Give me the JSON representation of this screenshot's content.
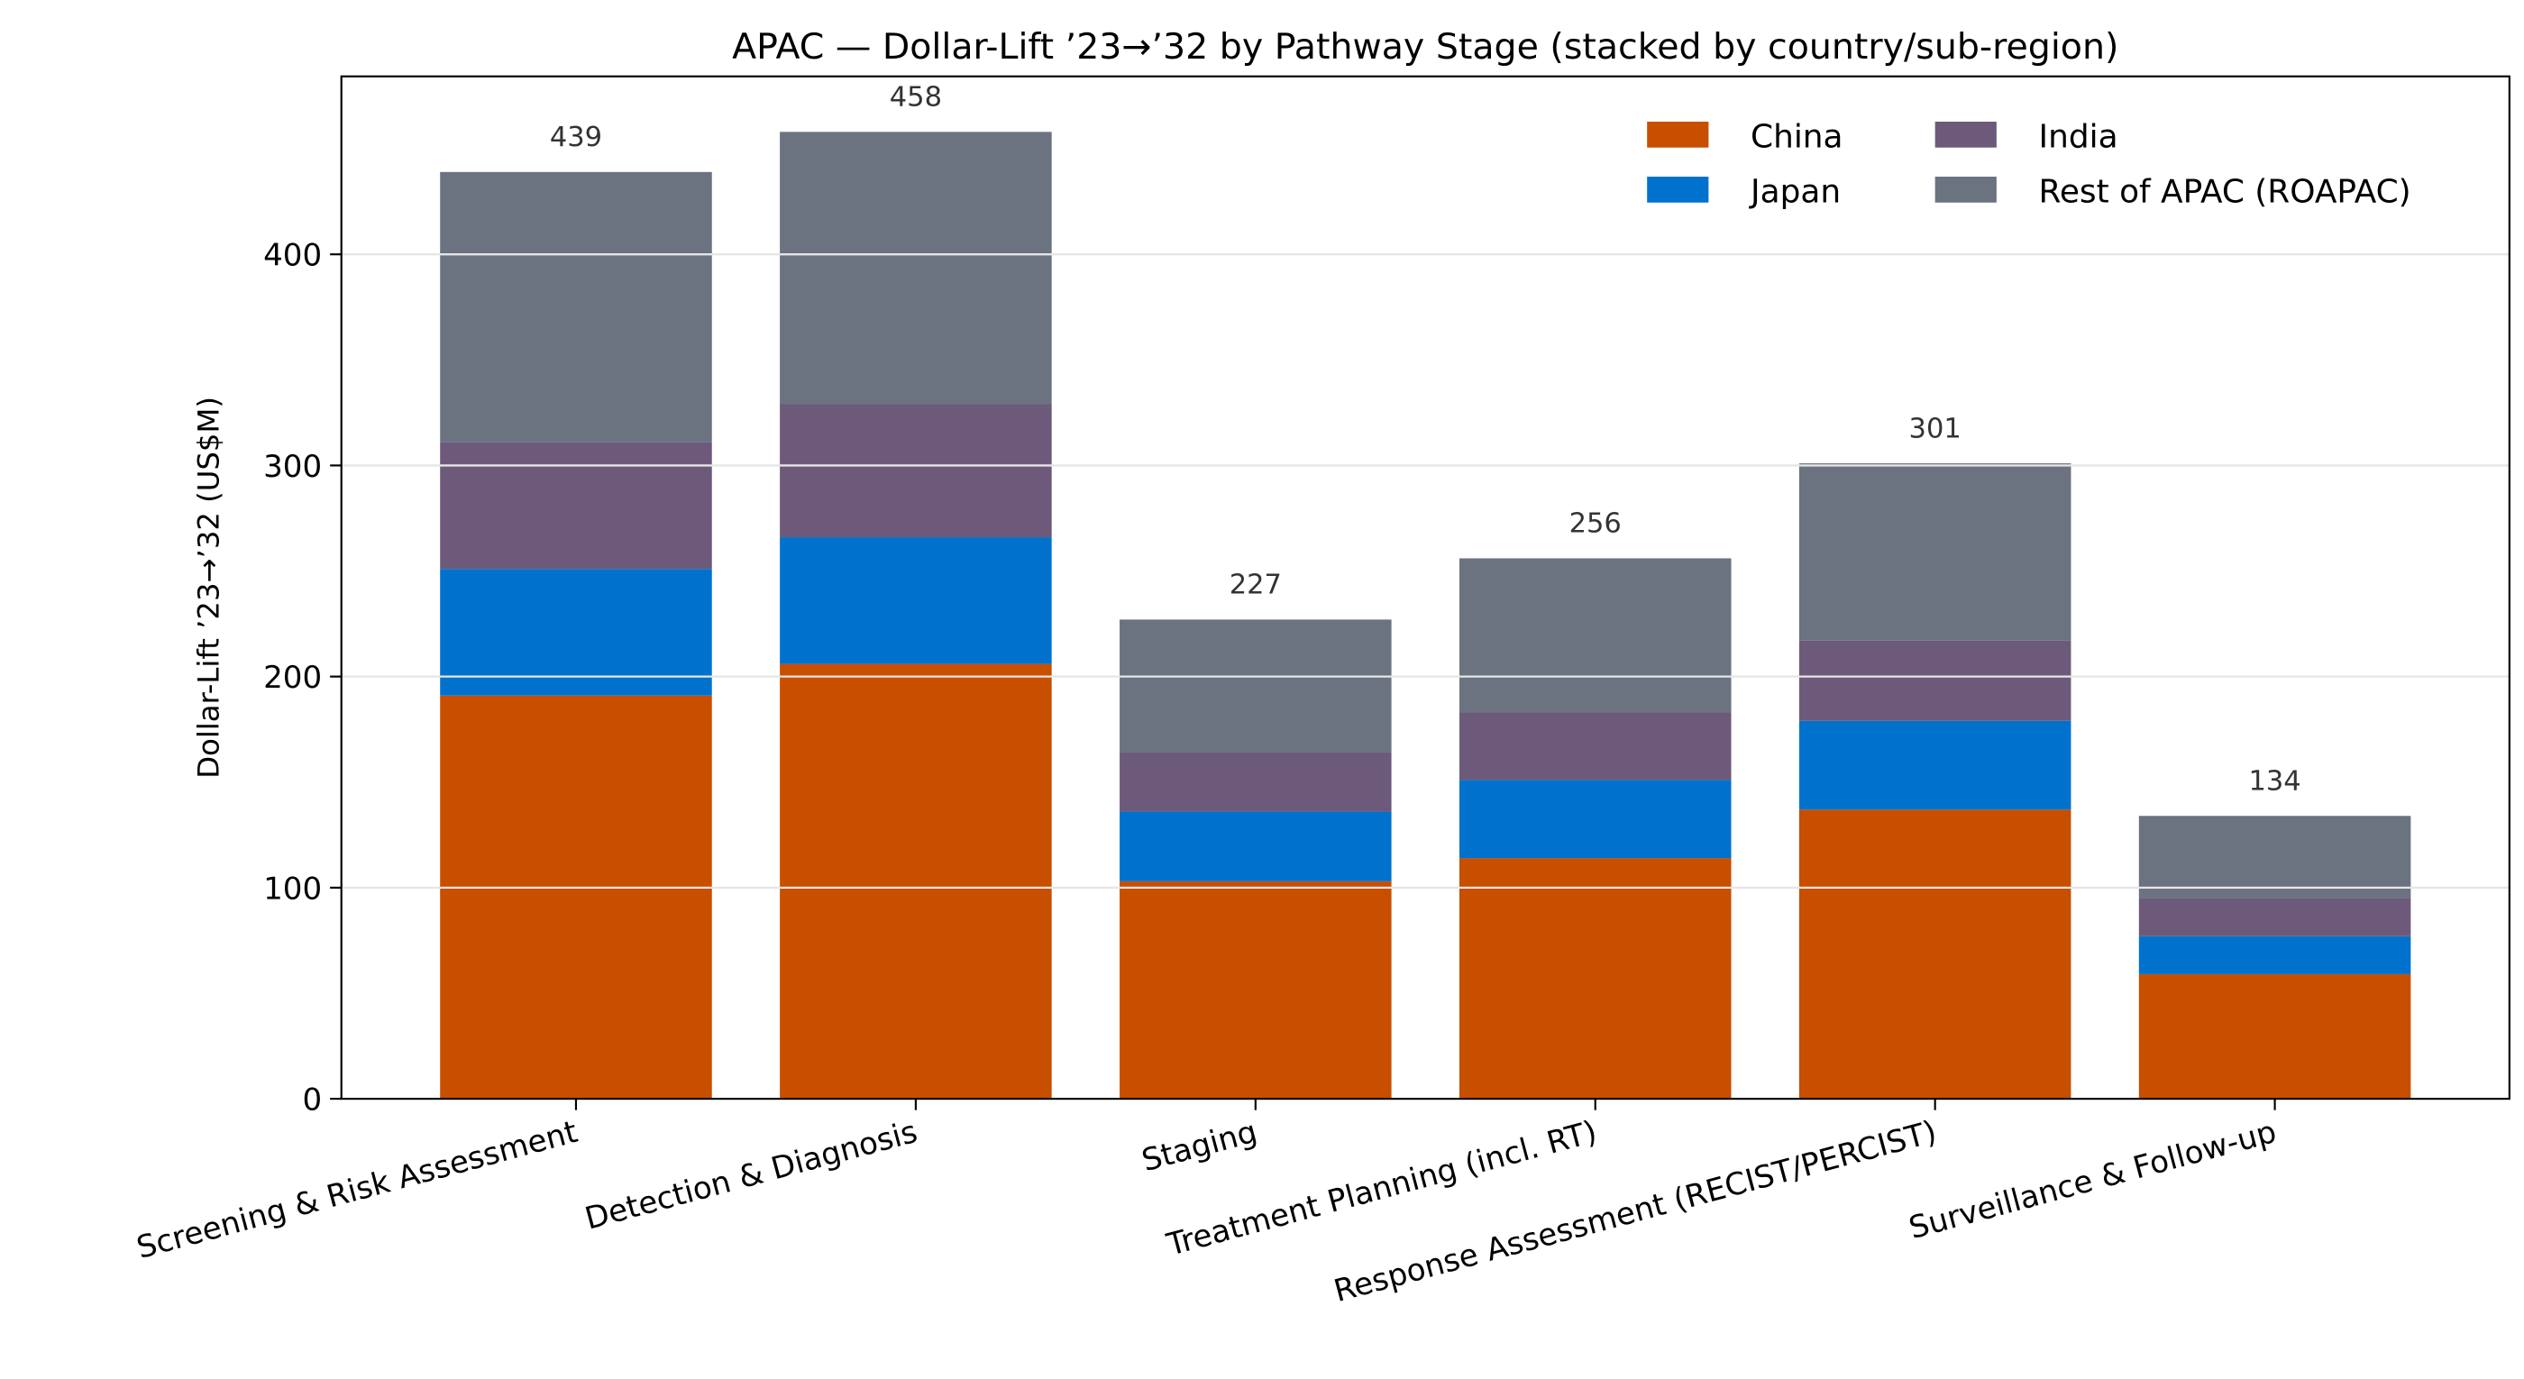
{
  "chart_data": {
    "type": "bar",
    "stacked": true,
    "title": "APAC — Dollar-Lift ’23→’32 by Pathway Stage (stacked by country/sub-region)",
    "xlabel": "",
    "ylabel": "Dollar-Lift ’23→’32 (US$M)",
    "ylim": [
      0,
      480
    ],
    "yticks": [
      0,
      100,
      200,
      300,
      400
    ],
    "grid": "y",
    "legend_position": "top-right",
    "categories": [
      "Screening & Risk Assessment",
      "Detection & Diagnosis",
      "Staging",
      "Treatment Planning (incl. RT)",
      "Response Assessment (RECIST/PERCIST)",
      "Surveillance & Follow-up"
    ],
    "series": [
      {
        "name": "China",
        "color": "#C84E00",
        "values": [
          191,
          206,
          103,
          114,
          137,
          59
        ]
      },
      {
        "name": "Japan",
        "color": "#0072CE",
        "values": [
          60,
          60,
          33,
          37,
          42,
          18
        ]
      },
      {
        "name": "India",
        "color": "#6D5A7B",
        "values": [
          60,
          63,
          28,
          32,
          38,
          18
        ]
      },
      {
        "name": "Rest of APAC (ROAPAC)",
        "color": "#6B7280",
        "values": [
          128,
          129,
          63,
          73,
          84,
          39
        ]
      }
    ],
    "totals": [
      439,
      458,
      227,
      256,
      301,
      134
    ]
  }
}
